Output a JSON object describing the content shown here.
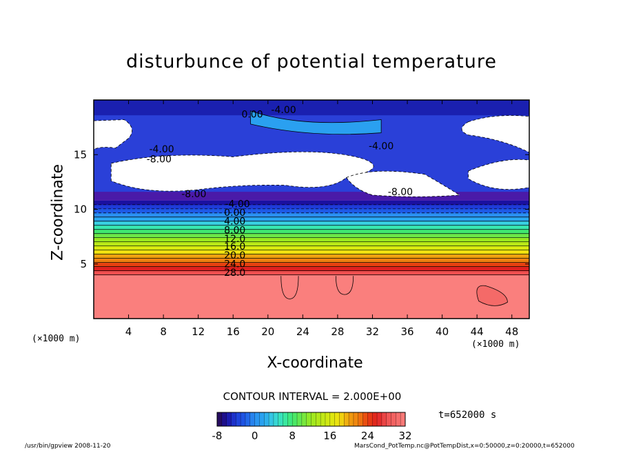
{
  "chart_data": {
    "type": "heatmap",
    "title": "disturbunce of potential temperature",
    "xlabel": "X-coordinate",
    "ylabel": "Z-coordinate",
    "x_unit_left": "(×1000 m)",
    "x_unit_right": "(×1000 m)",
    "xlim": [
      0,
      50
    ],
    "ylim": [
      0,
      20
    ],
    "xticks": [
      4,
      8,
      12,
      16,
      20,
      24,
      28,
      32,
      36,
      40,
      44,
      48
    ],
    "yticks": [
      5,
      10,
      15
    ],
    "contour_interval_text": "CONTOUR INTERVAL = 2.000E+00",
    "contour_interval": 2.0,
    "colorbar": {
      "range": [
        -8,
        32
      ],
      "ticks": [
        "-8",
        "0",
        "8",
        "16",
        "24",
        "32"
      ]
    },
    "contour_labels": [
      {
        "text": "0.00",
        "x": 18.2,
        "z": 18.4
      },
      {
        "text": "-4.00",
        "x": 21.8,
        "z": 18.8
      },
      {
        "text": "-4.00",
        "x": 33.0,
        "z": 15.5
      },
      {
        "text": "-4.00",
        "x": 7.8,
        "z": 15.2
      },
      {
        "text": "-8.00",
        "x": 7.5,
        "z": 14.3
      },
      {
        "text": "-8.00",
        "x": 11.5,
        "z": 11.1
      },
      {
        "text": "-8.00",
        "x": 35.2,
        "z": 11.3
      },
      {
        "text": "-4.00",
        "x": 16.5,
        "z": 10.2
      },
      {
        "text": "0.00",
        "x": 16.2,
        "z": 9.4
      },
      {
        "text": "4.00",
        "x": 16.2,
        "z": 8.6
      },
      {
        "text": "8.00",
        "x": 16.2,
        "z": 7.8
      },
      {
        "text": "12.0",
        "x": 16.2,
        "z": 7.0
      },
      {
        "text": "16.0",
        "x": 16.2,
        "z": 6.3
      },
      {
        "text": "20.0",
        "x": 16.2,
        "z": 5.5
      },
      {
        "text": "24.0",
        "x": 16.2,
        "z": 4.7
      },
      {
        "text": "28.0",
        "x": 16.2,
        "z": 3.9
      }
    ],
    "time_label": "t=652000 s",
    "footer_left": "/usr/bin/gpview  2008-11-20",
    "footer_right": "MarsCond_PotTemp.nc@PotTempDist,x=0:50000,z=0:20000,t=652000"
  },
  "colors": {
    "warm_layer": "#fa7f7d",
    "bg_outside_range": "#ffffff"
  }
}
